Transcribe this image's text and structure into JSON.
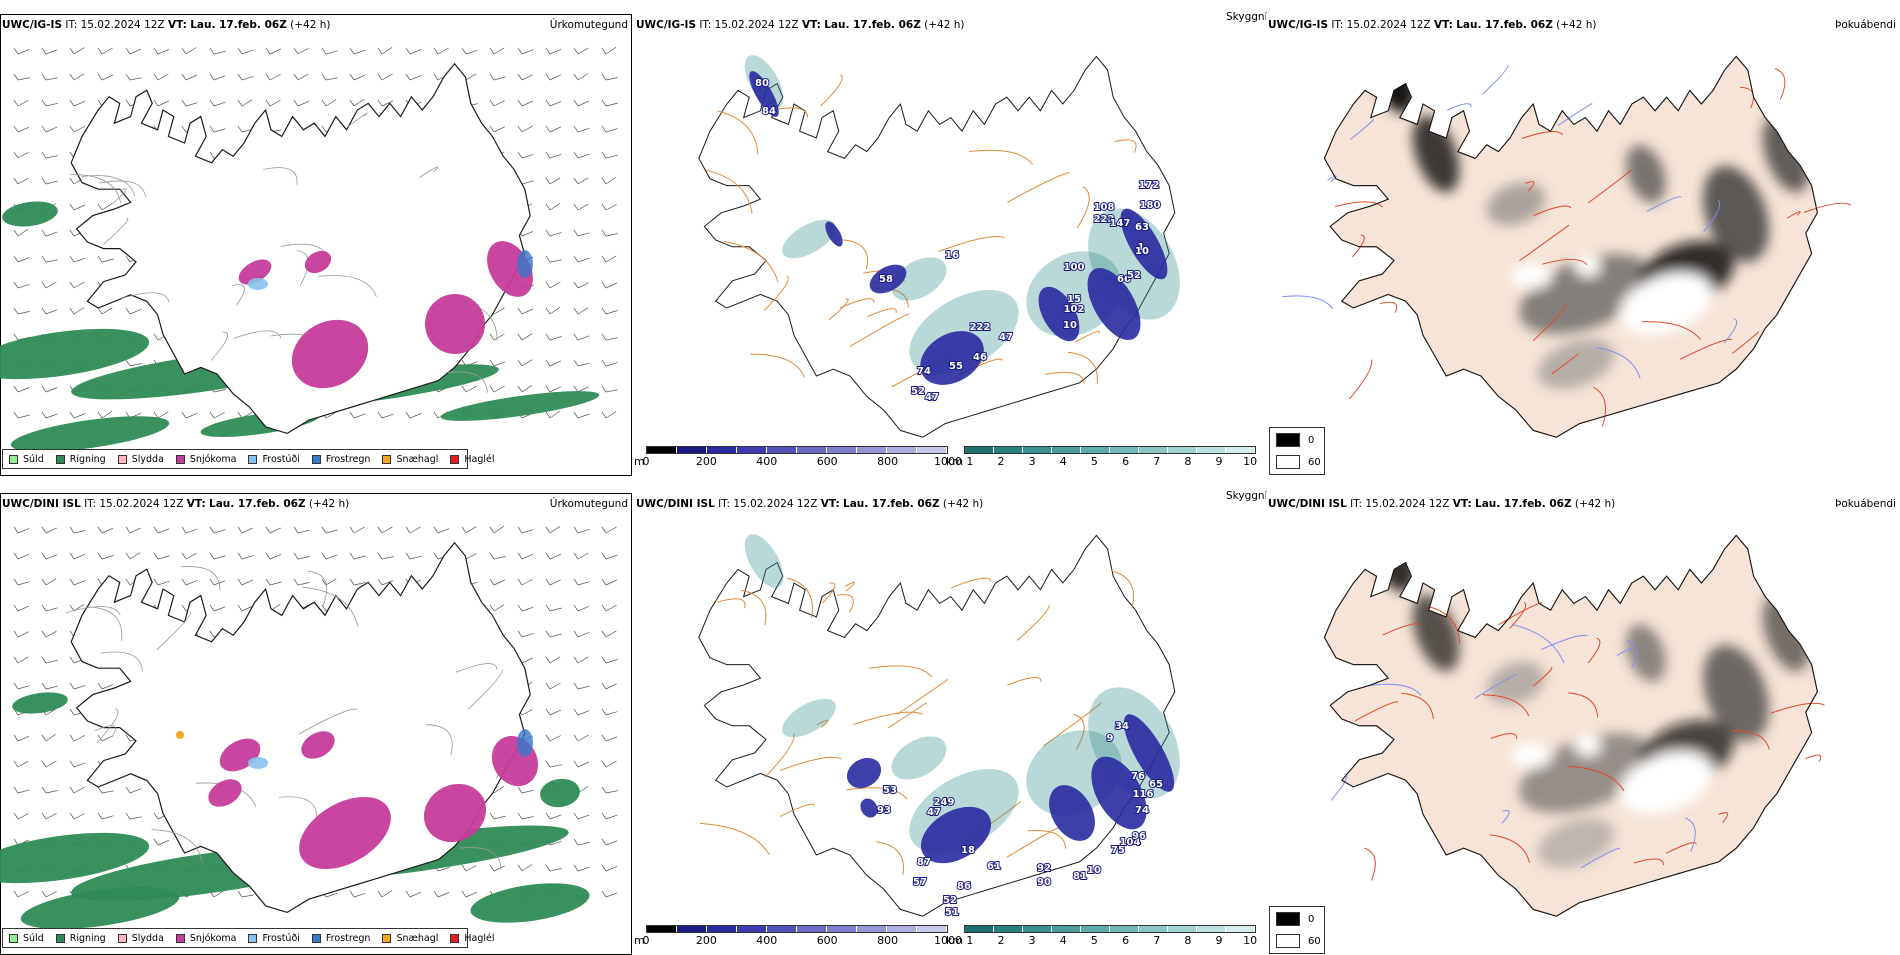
{
  "rows": [
    {
      "id": "igis",
      "header": {
        "model": "UWC/IG-IS",
        "it_label": "IT:",
        "it_value": "15.02.2024 12Z",
        "vt_label": "VT:",
        "vt_value": "Lau. 17.feb. 06Z",
        "lead": "(+42 h)"
      },
      "precip_labels": [
        "80",
        "84",
        "58",
        "16",
        "222",
        "47",
        "46",
        "55",
        "74",
        "52",
        "47",
        "102",
        "10",
        "100",
        "15",
        "108",
        "222",
        "147",
        "66",
        "52",
        "1",
        "10",
        "180",
        "63",
        "172"
      ],
      "precip_label_colors": {
        "fill": "#ffffff"
      }
    },
    {
      "id": "dini",
      "header": {
        "model": "UWC/DINI ISL",
        "it_label": "IT:",
        "it_value": "15.02.2024 12Z",
        "vt_label": "VT:",
        "vt_value": "Lau. 17.feb. 06Z",
        "lead": "(+42 h)"
      },
      "precip_labels": [
        "93",
        "53",
        "249",
        "47",
        "18",
        "87",
        "57",
        "52",
        "51",
        "86",
        "61",
        "92",
        "90",
        "81",
        "10",
        "75",
        "104",
        "116",
        "74",
        "96",
        "76",
        "65",
        "34",
        "9"
      ],
      "precip_label_colors": {
        "fill": "#ffffff"
      }
    }
  ],
  "panel_titles": {
    "precip_type": "Úrkomutegund",
    "visibility": "Skyggni",
    "fog": "Þokuábendi"
  },
  "precip_type_legend": [
    {
      "label": "Súld",
      "color": "#90ee90"
    },
    {
      "label": "Rigning",
      "color": "#2e8b57"
    },
    {
      "label": "Slydda",
      "color": "#ffb6c1"
    },
    {
      "label": "Snjókoma",
      "color": "#c53c9b"
    },
    {
      "label": "Frostúði",
      "color": "#87c3f0"
    },
    {
      "label": "Frostregn",
      "color": "#3a78c9"
    },
    {
      "label": "Snæhagl",
      "color": "#f5a623"
    },
    {
      "label": "Haglél",
      "color": "#e02020"
    }
  ],
  "ceiling_scale": {
    "unit": "m",
    "ticks": [
      "0",
      "200",
      "400",
      "600",
      "800",
      "1000"
    ],
    "colors": [
      "#000000",
      "#1a1a80",
      "#2a2aa0",
      "#3c3cb0",
      "#5252bb",
      "#6a6ac4",
      "#7e7ecc",
      "#9696d6",
      "#aeaee0",
      "#c8c8ea"
    ]
  },
  "vis_scale": {
    "unit": "km",
    "ticks": [
      "1",
      "2",
      "3",
      "4",
      "5",
      "6",
      "7",
      "8",
      "9",
      "10"
    ],
    "colors": [
      "#1f6f6f",
      "#2a7f7f",
      "#3a8f8f",
      "#4c9c9c",
      "#5faaaa",
      "#74b8b8",
      "#8ac6c6",
      "#a2d3d3",
      "#bce0e0",
      "#d6eded"
    ]
  },
  "fog_legend": [
    {
      "label": "0",
      "color": "#000000"
    },
    {
      "label": "60",
      "color": "#ffffff"
    }
  ],
  "colors": {
    "coast": "#1a1a1a",
    "road_orange": "#e08a3c",
    "road_red": "#e04a2a",
    "river_blue": "#7f8ff0",
    "land_tan": "#f6e4d8",
    "glacier": "#ffffff",
    "rain_green": "#2e8b57",
    "snow_magenta": "#c53c9b",
    "ceiling_blue": "#2a2aa0",
    "vis_teal": "#3a8f8f"
  }
}
